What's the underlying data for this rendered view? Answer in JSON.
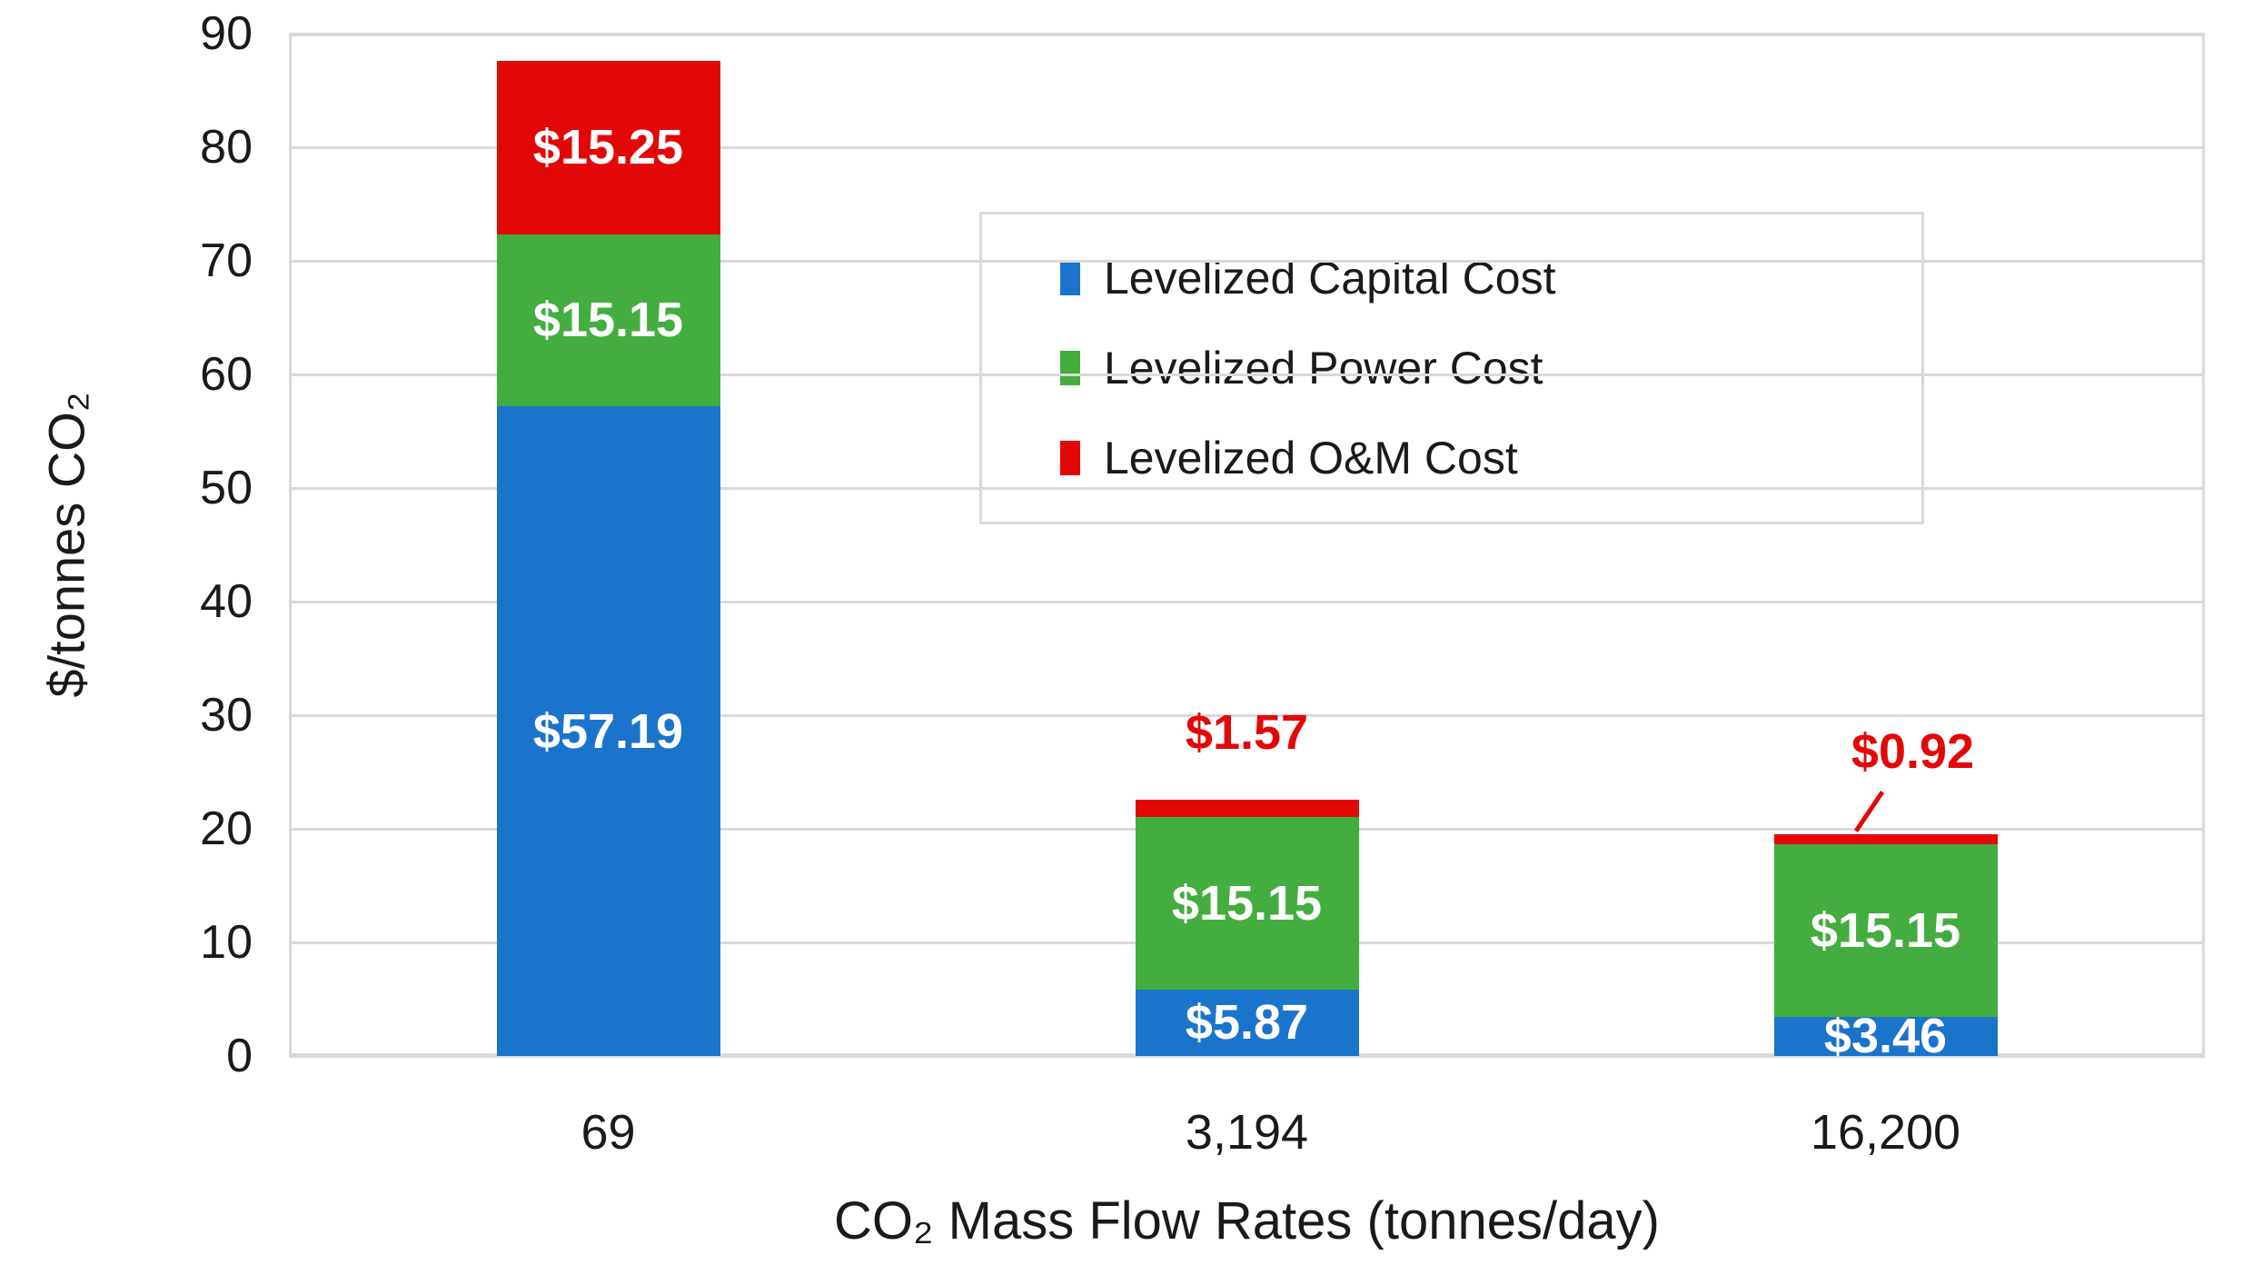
{
  "chart_data": {
    "type": "bar",
    "stacked": true,
    "title": "",
    "xlabel": "CO₂ Mass Flow Rates (tonnes/day)",
    "ylabel": "$/tonnes CO₂",
    "categories": [
      "69",
      "3,194",
      "16,200"
    ],
    "series": [
      {
        "name": "Levelized Capital Cost",
        "color": "#1b74cb",
        "values": [
          57.19,
          5.87,
          3.46
        ],
        "data_labels": [
          "$57.19",
          "$5.87",
          "$3.46"
        ],
        "label_placement": [
          "inside",
          "inside",
          "inside"
        ]
      },
      {
        "name": "Levelized Power Cost",
        "color": "#43ad40",
        "values": [
          15.15,
          15.15,
          15.15
        ],
        "data_labels": [
          "$15.15",
          "$15.15",
          "$15.15"
        ],
        "label_placement": [
          "inside",
          "inside",
          "inside"
        ]
      },
      {
        "name": "Levelized O&M Cost",
        "color": "#e30808",
        "values": [
          15.25,
          1.57,
          0.92
        ],
        "data_labels": [
          "$15.25",
          "$1.57",
          "$0.92"
        ],
        "label_placement": [
          "inside",
          "above",
          "above-leader"
        ]
      }
    ],
    "ylim": [
      0,
      90
    ],
    "ytick_step": 10,
    "ytick_labels": [
      "0",
      "10",
      "20",
      "30",
      "40",
      "50",
      "60",
      "70",
      "80",
      "90"
    ],
    "grid": "horizontal",
    "legend": {
      "position": "inside-upper-right",
      "entries": [
        "Levelized Capital Cost",
        "Levelized Power Cost",
        "Levelized O&M Cost"
      ]
    }
  },
  "colors": {
    "capital_blue": "#1b74cb",
    "power_green": "#43ad40",
    "om_red": "#e30808",
    "gridline_gray": "#d9d9d9",
    "axis_text": "#1a1a1a",
    "inside_label_white": "#ffffff",
    "background": "#ffffff"
  }
}
